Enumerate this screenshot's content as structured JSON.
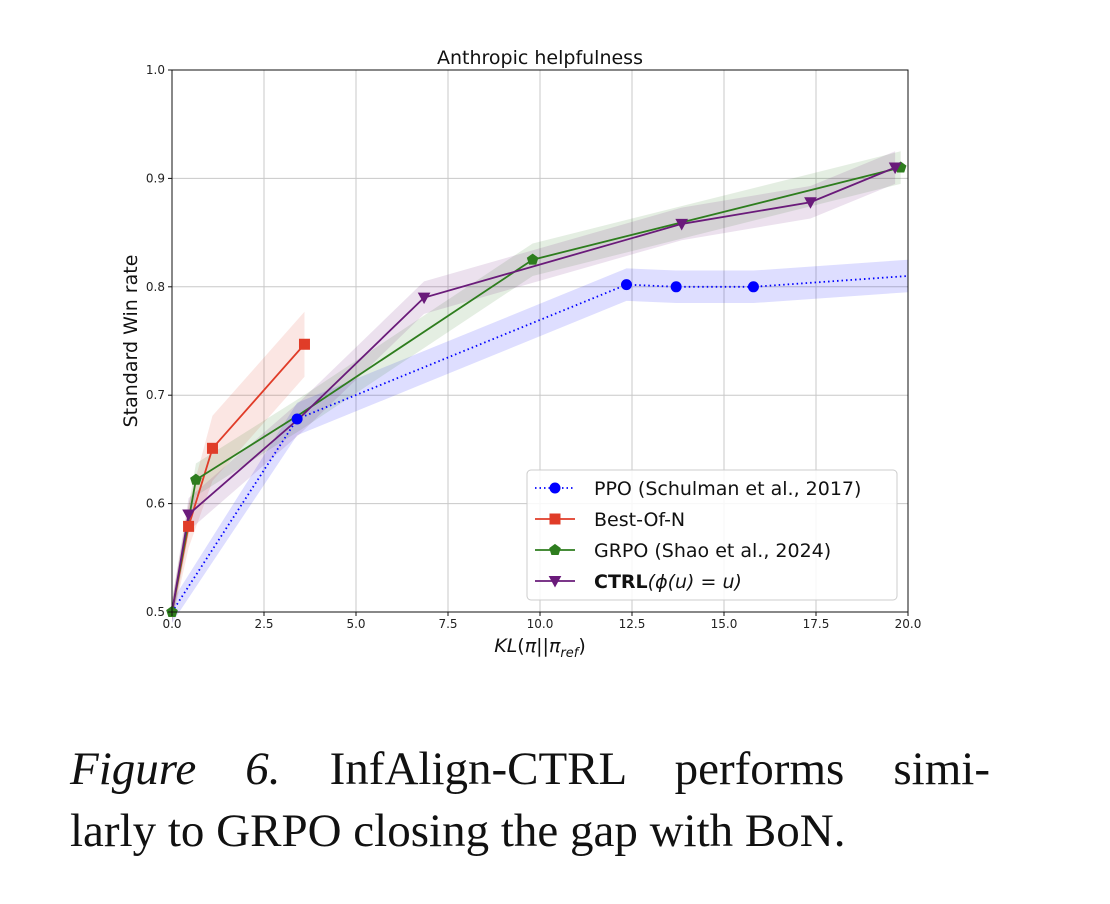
{
  "chart_data": {
    "type": "line",
    "title": "Anthropic helpfulness",
    "xlabel": "KL(π||π_ref)",
    "ylabel": "Standard Win rate",
    "xlim": [
      0.0,
      20.0
    ],
    "ylim": [
      0.5,
      1.0
    ],
    "x_ticks": [
      "0.0",
      "2.5",
      "5.0",
      "7.5",
      "10.0",
      "12.5",
      "15.0",
      "17.5",
      "20.0"
    ],
    "y_ticks": [
      "0.5",
      "0.6",
      "0.7",
      "0.8",
      "0.9",
      "1.0"
    ],
    "grid": true,
    "legend_position": "lower-right",
    "series": [
      {
        "name": "PPO (Schulman et al., 2017)",
        "color": "#0000ff",
        "line_style": "dotted",
        "marker": "circle",
        "x": [
          0.0,
          3.4,
          12.35,
          13.7,
          15.8,
          20.0
        ],
        "y": [
          0.5,
          0.678,
          0.802,
          0.8,
          0.8,
          0.81
        ],
        "band": [
          0.01,
          0.015,
          0.015,
          0.015,
          0.015,
          0.015
        ],
        "markers_shown": [
          false,
          true,
          true,
          true,
          true,
          false
        ]
      },
      {
        "name": "Best-Of-N",
        "color": "#e03c28",
        "line_style": "solid",
        "marker": "square",
        "x": [
          0.0,
          0.45,
          1.1,
          3.6
        ],
        "y": [
          0.5,
          0.579,
          0.651,
          0.747
        ],
        "band": [
          0.01,
          0.02,
          0.03,
          0.03
        ],
        "markers_shown": [
          false,
          true,
          true,
          true
        ]
      },
      {
        "name": "GRPO (Shao et al., 2024)",
        "color": "#2e7d1e",
        "line_style": "solid",
        "marker": "pentagon",
        "x": [
          0.0,
          0.65,
          3.5,
          9.8,
          19.8
        ],
        "y": [
          0.5,
          0.622,
          0.683,
          0.825,
          0.91
        ],
        "band": [
          0.01,
          0.015,
          0.015,
          0.015,
          0.015
        ],
        "markers_shown": [
          true,
          true,
          false,
          true,
          true
        ]
      },
      {
        "name_bold": "CTRL",
        "name_rest": "(ϕ(u) = u)",
        "color": "#6a1b7a",
        "line_style": "solid",
        "marker": "triangle-down",
        "x": [
          0.0,
          0.45,
          3.5,
          6.85,
          13.85,
          17.35,
          19.65
        ],
        "y": [
          0.5,
          0.59,
          0.68,
          0.79,
          0.858,
          0.878,
          0.91
        ],
        "band": [
          0.01,
          0.015,
          0.015,
          0.015,
          0.015,
          0.015,
          0.015
        ],
        "markers_shown": [
          false,
          true,
          false,
          true,
          true,
          true,
          true
        ]
      }
    ]
  },
  "caption": {
    "label": "Figure 6.",
    "line1": "InfAlign-CTRL performs simi-",
    "line2": "larly to GRPO closing the gap with BoN."
  }
}
